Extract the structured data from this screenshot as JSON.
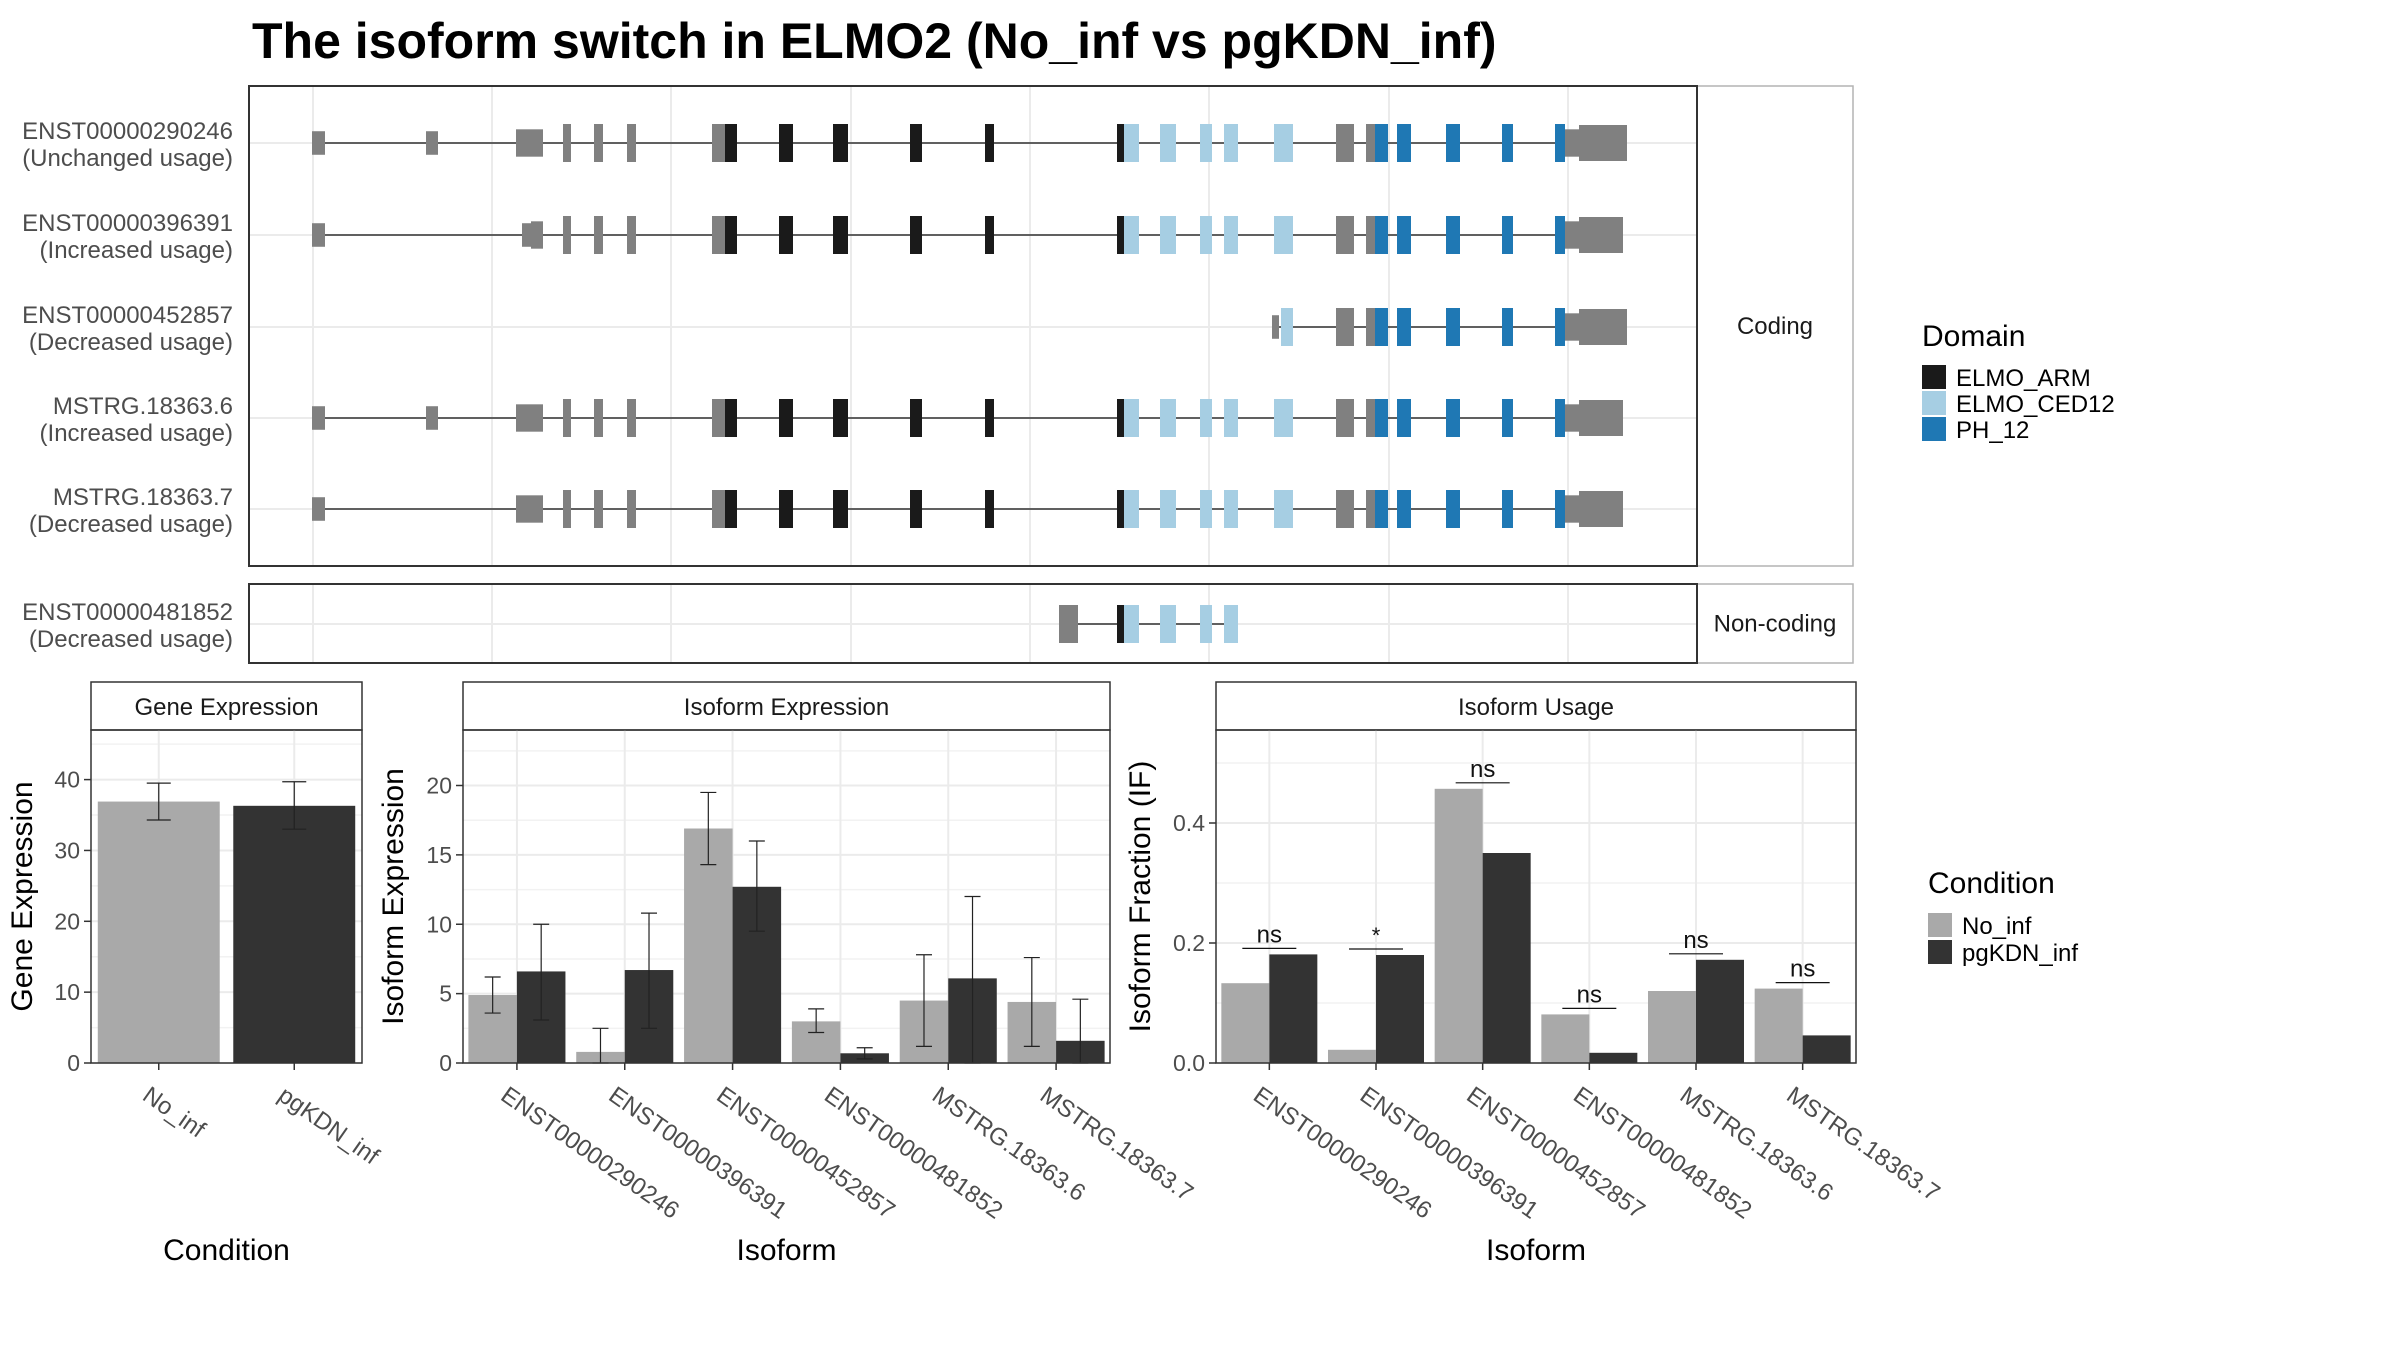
{
  "title": "The isoform switch in ELMO2 (No_inf vs pgKDN_inf)",
  "colors": {
    "ELMO_ARM": "#1a1a1a",
    "ELMO_CED12": "#a6cee3",
    "PH_12": "#1f78b4",
    "no_domain": "#808080",
    "No_inf": "#a9a9a9",
    "pgKDN_inf": "#333333"
  },
  "transcripts": {
    "facets": [
      "Coding",
      "Non-coding"
    ],
    "rows": [
      {
        "id": "ENST00000290246",
        "usage": "(Unchanged usage)",
        "facet": "Coding"
      },
      {
        "id": "ENST00000396391",
        "usage": "(Increased usage)",
        "facet": "Coding"
      },
      {
        "id": "ENST00000452857",
        "usage": "(Decreased usage)",
        "facet": "Coding"
      },
      {
        "id": "MSTRG.18363.6",
        "usage": "(Increased usage)",
        "facet": "Coding"
      },
      {
        "id": "MSTRG.18363.7",
        "usage": "(Decreased usage)",
        "facet": "Coding"
      },
      {
        "id": "ENST00000481852",
        "usage": "(Decreased usage)",
        "facet": "Non-coding"
      }
    ]
  },
  "legend_domain": {
    "title": "Domain",
    "entries": [
      {
        "label": "ELMO_ARM",
        "color": "#1a1a1a"
      },
      {
        "label": "ELMO_CED12",
        "color": "#a6cee3"
      },
      {
        "label": "PH_12",
        "color": "#1f78b4"
      }
    ]
  },
  "legend_condition": {
    "title": "Condition",
    "entries": [
      {
        "label": "No_inf",
        "color": "#a9a9a9"
      },
      {
        "label": "pgKDN_inf",
        "color": "#333333"
      }
    ]
  },
  "chart_data": [
    {
      "type": "bar",
      "title": "Gene Expression",
      "xlabel": "Condition",
      "ylabel": "Gene Expression",
      "categories": [
        "No_inf",
        "pgKDN_inf"
      ],
      "values": [
        36.9,
        36.3
      ],
      "errors": [
        [
          34.3,
          39.5
        ],
        [
          33.0,
          39.7
        ]
      ],
      "ylim": [
        0,
        47
      ],
      "yticks": [
        0,
        10,
        20,
        30,
        40
      ]
    },
    {
      "type": "bar",
      "title": "Isoform Expression",
      "xlabel": "Isoform",
      "ylabel": "Isoform Expression",
      "categories": [
        "ENST00000290246",
        "ENST00000396391",
        "ENST00000452857",
        "ENST00000481852",
        "MSTRG.18363.6",
        "MSTRG.18363.7"
      ],
      "series": [
        {
          "name": "No_inf",
          "values": [
            4.9,
            0.8,
            16.9,
            3.0,
            4.5,
            4.4
          ],
          "errors": [
            [
              3.6,
              6.2
            ],
            [
              0,
              2.5
            ],
            [
              14.3,
              19.5
            ],
            [
              2.2,
              3.9
            ],
            [
              1.2,
              7.8
            ],
            [
              1.2,
              7.6
            ]
          ]
        },
        {
          "name": "pgKDN_inf",
          "values": [
            6.6,
            6.7,
            12.7,
            0.7,
            6.1,
            1.6
          ],
          "errors": [
            [
              3.1,
              10.0
            ],
            [
              2.5,
              10.8
            ],
            [
              9.5,
              16.0
            ],
            [
              0.3,
              1.1
            ],
            [
              0,
              12.0
            ],
            [
              0,
              4.6
            ]
          ]
        }
      ],
      "ylim": [
        0,
        24
      ],
      "yticks": [
        0,
        5,
        10,
        15,
        20
      ]
    },
    {
      "type": "bar",
      "title": "Isoform Usage",
      "xlabel": "Isoform",
      "ylabel": "Isoform Fraction (IF)",
      "categories": [
        "ENST00000290246",
        "ENST00000396391",
        "ENST00000452857",
        "ENST00000481852",
        "MSTRG.18363.6",
        "MSTRG.18363.7"
      ],
      "series": [
        {
          "name": "No_inf",
          "values": [
            0.133,
            0.022,
            0.457,
            0.081,
            0.12,
            0.124
          ]
        },
        {
          "name": "pgKDN_inf",
          "values": [
            0.181,
            0.18,
            0.35,
            0.017,
            0.172,
            0.046
          ]
        }
      ],
      "significance": [
        "ns",
        "*",
        "ns",
        "ns",
        "ns",
        "ns"
      ],
      "ylim": [
        0,
        0.555
      ],
      "yticks": [
        0.0,
        0.2,
        0.4
      ]
    }
  ]
}
